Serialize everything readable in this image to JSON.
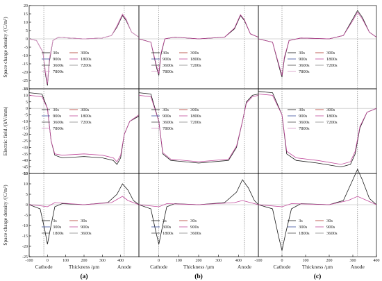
{
  "figure": {
    "y_labels": [
      "Space charge density /(C/m³)",
      "Electric field /(kV/mm)",
      "Space charge density /(C/m³)"
    ],
    "x_label": "Thickness /μm",
    "cathode_label": "Cathode",
    "anode_label": "Anode",
    "panel_labels": [
      "(a)",
      "(b)",
      "(c)"
    ]
  },
  "chart_data": [
    {
      "type": "line",
      "panel": "a",
      "row": 1,
      "ylim": [
        -30,
        20
      ],
      "yticks": [
        -30,
        -25,
        -20,
        -15,
        -10,
        -5,
        0,
        5,
        10,
        15,
        20
      ],
      "xlim": [
        -100,
        500
      ],
      "legend": [
        "30s",
        "300s",
        "900s",
        "1800s",
        "3600s",
        "7200s",
        "7800s"
      ],
      "series": [
        {
          "name": "30s",
          "x": [
            -100,
            -60,
            -25,
            -10,
            0,
            10,
            30,
            60,
            120,
            200,
            300,
            350,
            380,
            410,
            430,
            460,
            500
          ],
          "y": [
            0,
            -1,
            -8,
            -22,
            -28,
            -14,
            -1,
            1,
            0.5,
            0,
            0.5,
            2,
            7,
            14,
            11,
            4,
            1
          ]
        },
        {
          "name": "300s",
          "x": [
            -100,
            -60,
            -25,
            -10,
            0,
            10,
            30,
            60,
            120,
            200,
            300,
            350,
            380,
            410,
            430,
            460,
            500
          ],
          "y": [
            0,
            -1,
            -8,
            -21,
            -27,
            -13,
            -1,
            1,
            0.5,
            0,
            0.5,
            2,
            7.5,
            14.5,
            11.5,
            4,
            1
          ]
        },
        {
          "name": "7800s",
          "x": [
            -100,
            -60,
            -25,
            -10,
            0,
            10,
            30,
            60,
            120,
            200,
            300,
            350,
            380,
            410,
            430,
            460,
            500
          ],
          "y": [
            0,
            -1,
            -8,
            -20,
            -26,
            -12,
            -1,
            1,
            0.5,
            0,
            0.5,
            2,
            8,
            15,
            12,
            4,
            1
          ]
        }
      ]
    },
    {
      "type": "line",
      "panel": "b",
      "row": 1,
      "ylim": [
        -30,
        20
      ],
      "xlim": [
        -100,
        500
      ],
      "legend": [
        "30s",
        "300s",
        "900s",
        "1800s",
        "3600s",
        "7200s",
        "7800s"
      ],
      "series": [
        {
          "name": "30s",
          "x": [
            -100,
            -40,
            -10,
            0,
            10,
            30,
            80,
            200,
            330,
            380,
            410,
            430,
            460,
            500
          ],
          "y": [
            0,
            -2,
            -18,
            -22,
            -10,
            0,
            1,
            0,
            1,
            6,
            14,
            11,
            3,
            1
          ]
        },
        {
          "name": "7800s",
          "x": [
            -100,
            -40,
            -10,
            0,
            10,
            30,
            80,
            200,
            330,
            380,
            410,
            430,
            460,
            500
          ],
          "y": [
            0,
            -2,
            -17,
            -21,
            -9,
            0,
            1,
            0,
            1,
            6.5,
            14.5,
            11.5,
            3,
            1
          ]
        }
      ]
    },
    {
      "type": "line",
      "panel": "c",
      "row": 1,
      "ylim": [
        -30,
        20
      ],
      "xlim": [
        -100,
        400
      ],
      "legend": [
        "30s",
        "300s",
        "900s",
        "1800s",
        "3600s",
        "7200s",
        "7800s"
      ],
      "series": [
        {
          "name": "30s",
          "x": [
            -100,
            -40,
            -10,
            0,
            10,
            30,
            80,
            200,
            260,
            300,
            320,
            340,
            370,
            400
          ],
          "y": [
            0,
            -2,
            -18,
            -23,
            -12,
            -1,
            0.5,
            0,
            2,
            12,
            17,
            13,
            4,
            1
          ]
        },
        {
          "name": "7800s",
          "x": [
            -100,
            -40,
            -10,
            0,
            10,
            30,
            80,
            200,
            260,
            300,
            320,
            340,
            370,
            400
          ],
          "y": [
            0,
            -2,
            -17,
            -22,
            -11,
            -1,
            0.5,
            0,
            2,
            11,
            16,
            12,
            4,
            1
          ]
        }
      ]
    },
    {
      "type": "line",
      "panel": "a",
      "row": 2,
      "ylim": [
        -50,
        15
      ],
      "yticks": [
        -50,
        -45,
        -40,
        -35,
        -30,
        -25,
        -20,
        -15,
        -10,
        -5,
        0,
        5,
        10,
        15
      ],
      "xlim": [
        -100,
        500
      ],
      "legend": [
        "30s",
        "300s",
        "900s",
        "1800s",
        "3600s",
        "7200s",
        "7800s"
      ],
      "series": [
        {
          "name": "30s",
          "x": [
            -100,
            -30,
            0,
            20,
            40,
            80,
            200,
            300,
            360,
            380,
            400,
            420,
            450,
            500
          ],
          "y": [
            12,
            11,
            0,
            -25,
            -36,
            -38,
            -37,
            -38,
            -40,
            -43,
            -38,
            -20,
            -10,
            -6
          ]
        },
        {
          "name": "7800s",
          "x": [
            -100,
            -30,
            0,
            20,
            40,
            80,
            200,
            300,
            360,
            380,
            400,
            420,
            450,
            500
          ],
          "y": [
            10,
            9,
            0,
            -25,
            -35,
            -36,
            -35,
            -36,
            -38,
            -41,
            -36,
            -20,
            -10,
            -5
          ]
        }
      ]
    },
    {
      "type": "line",
      "panel": "b",
      "row": 2,
      "ylim": [
        -50,
        15
      ],
      "xlim": [
        -100,
        500
      ],
      "legend": [
        "30s",
        "300s",
        "900s",
        "1800s",
        "3600s",
        "7200s",
        "7800s"
      ],
      "series": [
        {
          "name": "30s",
          "x": [
            -100,
            -40,
            0,
            20,
            60,
            200,
            350,
            390,
            420,
            440,
            470,
            500
          ],
          "y": [
            12,
            11,
            -10,
            -35,
            -40,
            -42,
            -40,
            -30,
            -10,
            5,
            10,
            11
          ]
        },
        {
          "name": "7800s",
          "x": [
            -100,
            -40,
            0,
            20,
            60,
            200,
            350,
            390,
            420,
            440,
            470,
            500
          ],
          "y": [
            10,
            9,
            -10,
            -34,
            -39,
            -41,
            -39,
            -29,
            -10,
            4,
            9,
            10
          ]
        }
      ]
    },
    {
      "type": "line",
      "panel": "c",
      "row": 2,
      "ylim": [
        -50,
        15
      ],
      "xlim": [
        -100,
        400
      ],
      "legend": [
        "30s",
        "300s",
        "900s",
        "1800s",
        "3600s",
        "7200s",
        "7800s"
      ],
      "series": [
        {
          "name": "30s",
          "x": [
            -100,
            -40,
            0,
            20,
            60,
            150,
            250,
            290,
            310,
            330,
            360,
            400
          ],
          "y": [
            13,
            12,
            -5,
            -35,
            -40,
            -42,
            -45,
            -43,
            -35,
            -15,
            -3,
            0
          ]
        },
        {
          "name": "7800s",
          "x": [
            -100,
            -40,
            0,
            20,
            60,
            150,
            250,
            290,
            310,
            330,
            360,
            400
          ],
          "y": [
            11,
            10,
            -5,
            -33,
            -38,
            -40,
            -43,
            -41,
            -33,
            -14,
            -3,
            0
          ]
        }
      ]
    },
    {
      "type": "line",
      "panel": "a",
      "row": 3,
      "ylim": [
        -25,
        15
      ],
      "yticks": [
        -25,
        -20,
        -15,
        -10,
        -5,
        0,
        5,
        10,
        15
      ],
      "xlim": [
        -100,
        500
      ],
      "xticks": [
        -100,
        0,
        100,
        200,
        300,
        400
      ],
      "legend": [
        "3s",
        "30s",
        "300s",
        "900s",
        "1800s",
        "3600s"
      ],
      "series": [
        {
          "name": "3s",
          "x": [
            -100,
            -40,
            -15,
            0,
            15,
            40,
            80,
            200,
            330,
            380,
            410,
            440,
            470,
            500
          ],
          "y": [
            0,
            -2,
            -12,
            -19,
            -12,
            -1,
            0.5,
            0,
            1,
            5,
            10,
            7,
            2,
            0
          ]
        },
        {
          "name": "30s",
          "x": [
            -100,
            -40,
            0,
            40,
            200,
            350,
            410,
            440,
            500
          ],
          "y": [
            0,
            -0.5,
            -1,
            1,
            0,
            1,
            4,
            2,
            0
          ]
        }
      ]
    },
    {
      "type": "line",
      "panel": "b",
      "row": 3,
      "ylim": [
        -25,
        15
      ],
      "xlim": [
        -100,
        500
      ],
      "xticks": [
        0,
        100,
        200,
        300,
        400
      ],
      "legend": [
        "3s",
        "30s",
        "300s",
        "900s",
        "1800s",
        "3600s"
      ],
      "series": [
        {
          "name": "3s",
          "x": [
            -100,
            -40,
            -15,
            0,
            15,
            40,
            80,
            200,
            330,
            390,
            420,
            450,
            480,
            500
          ],
          "y": [
            0,
            -2,
            -13,
            -19,
            -12,
            -1,
            0.5,
            0,
            1,
            6,
            12,
            8,
            2,
            0
          ]
        },
        {
          "name": "30s",
          "x": [
            -100,
            0,
            40,
            200,
            380,
            420,
            460,
            500
          ],
          "y": [
            0,
            -1,
            0.5,
            0,
            1,
            2,
            1,
            0
          ]
        }
      ]
    },
    {
      "type": "line",
      "panel": "c",
      "row": 3,
      "ylim": [
        -25,
        15
      ],
      "xlim": [
        -100,
        400
      ],
      "xticks": [
        -100,
        0,
        100,
        200,
        300,
        400
      ],
      "legend": [
        "3s",
        "30s",
        "300s",
        "900s",
        "1800s",
        "3600s"
      ],
      "series": [
        {
          "name": "3s",
          "x": [
            -100,
            -40,
            -15,
            0,
            15,
            40,
            80,
            200,
            260,
            300,
            320,
            340,
            370,
            400
          ],
          "y": [
            0,
            -2,
            -15,
            -22,
            -14,
            -2,
            0.5,
            0,
            2,
            12,
            17,
            12,
            3,
            0
          ]
        },
        {
          "name": "30s",
          "x": [
            -100,
            0,
            40,
            200,
            280,
            320,
            360,
            400
          ],
          "y": [
            0,
            -1,
            0.5,
            0,
            2,
            4,
            2,
            0
          ]
        }
      ]
    }
  ]
}
